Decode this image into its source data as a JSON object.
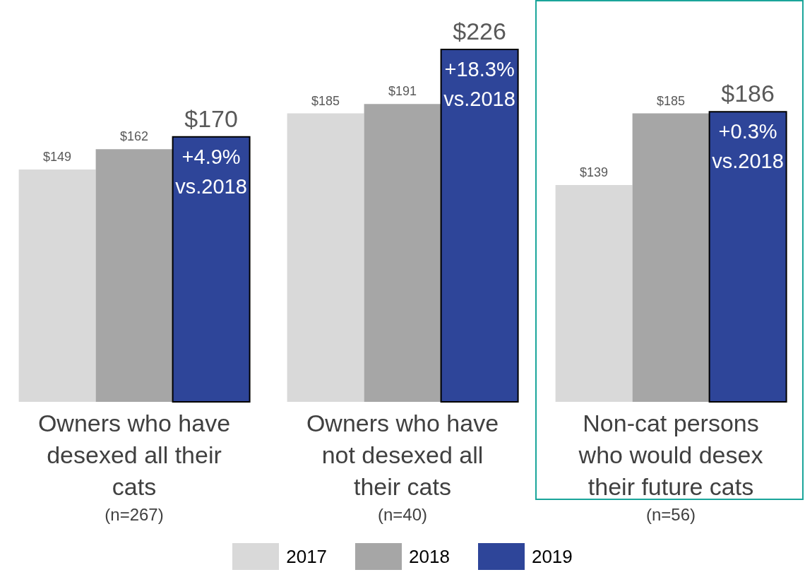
{
  "chart_data": {
    "type": "bar",
    "categories": [
      "Owners who have desexed all their cats (n=267)",
      "Owners who have not desexed all their cats (n=40)",
      "Non-cat persons who would desex their future cats (n=56)"
    ],
    "series": [
      {
        "name": "2017",
        "color": "#d9d9d9",
        "values": [
          149,
          185,
          139
        ],
        "value_labels": [
          "$149",
          "$185",
          "$139"
        ]
      },
      {
        "name": "2018",
        "color": "#a6a6a6",
        "values": [
          162,
          191,
          185
        ],
        "value_labels": [
          "$162",
          "$191",
          "$185"
        ]
      },
      {
        "name": "2019",
        "color": "#2e4599",
        "values": [
          170,
          226,
          186
        ],
        "value_labels": [
          "$170",
          "$226",
          "$186"
        ]
      }
    ],
    "annotations": [
      "+4.9% vs.2018",
      "+18.3% vs.2018",
      "+0.3% vs.2018"
    ],
    "legend": "bottom",
    "grid": false
  }
}
